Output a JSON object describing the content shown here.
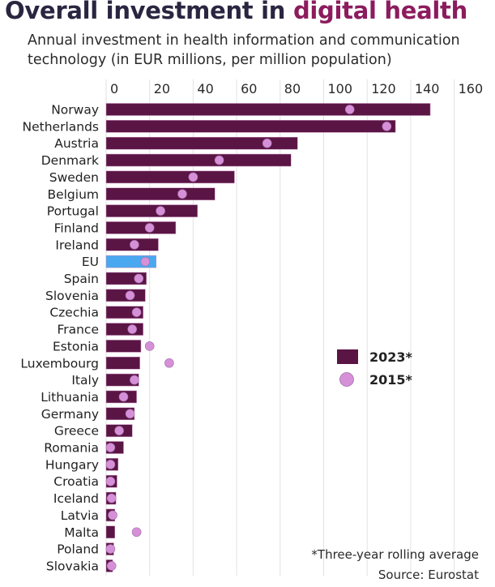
{
  "chart_data": {
    "type": "bar",
    "orientation": "horizontal",
    "title_main": "Overall investment in ",
    "title_highlight": "digital health",
    "subtitle": "Annual investment in health information and communication technology (in EUR millions, per million population)",
    "xlim": [
      0,
      160
    ],
    "xticks": [
      0,
      20,
      40,
      60,
      80,
      100,
      120,
      140,
      160
    ],
    "grid": true,
    "legend_position": "right",
    "categories": [
      "Norway",
      "Netherlands",
      "Austria",
      "Denmark",
      "Sweden",
      "Belgium",
      "Portugal",
      "Finland",
      "Ireland",
      "EU",
      "Spain",
      "Slovenia",
      "Czechia",
      "France",
      "Estonia",
      "Luxembourg",
      "Italy",
      "Lithuania",
      "Germany",
      "Greece",
      "Romania",
      "Hungary",
      "Croatia",
      "Iceland",
      "Latvia",
      "Malta",
      "Poland",
      "Slovakia"
    ],
    "highlight_category": "EU",
    "series": [
      {
        "name": "2023*",
        "kind": "bar",
        "color": "#5a1545",
        "values": [
          149,
          133,
          88,
          85,
          59,
          50,
          42,
          32,
          24,
          23,
          18.5,
          18,
          17,
          17,
          16,
          15.5,
          15,
          14,
          13,
          12,
          8,
          5.5,
          5,
          4.5,
          4,
          4,
          3.5,
          3
        ]
      },
      {
        "name": "2015*",
        "kind": "dot",
        "color": "#d690d8",
        "values": [
          112,
          129,
          74,
          52,
          40,
          35,
          25,
          20,
          13,
          18,
          15,
          11,
          14,
          12,
          20,
          29,
          13,
          8,
          11,
          6,
          2,
          2,
          2,
          2.5,
          3,
          14,
          2,
          2.5
        ]
      }
    ],
    "highlight_color": "#4aa8f0",
    "footnote": "*Three-year rolling average",
    "source": "Source: Eurostat"
  }
}
